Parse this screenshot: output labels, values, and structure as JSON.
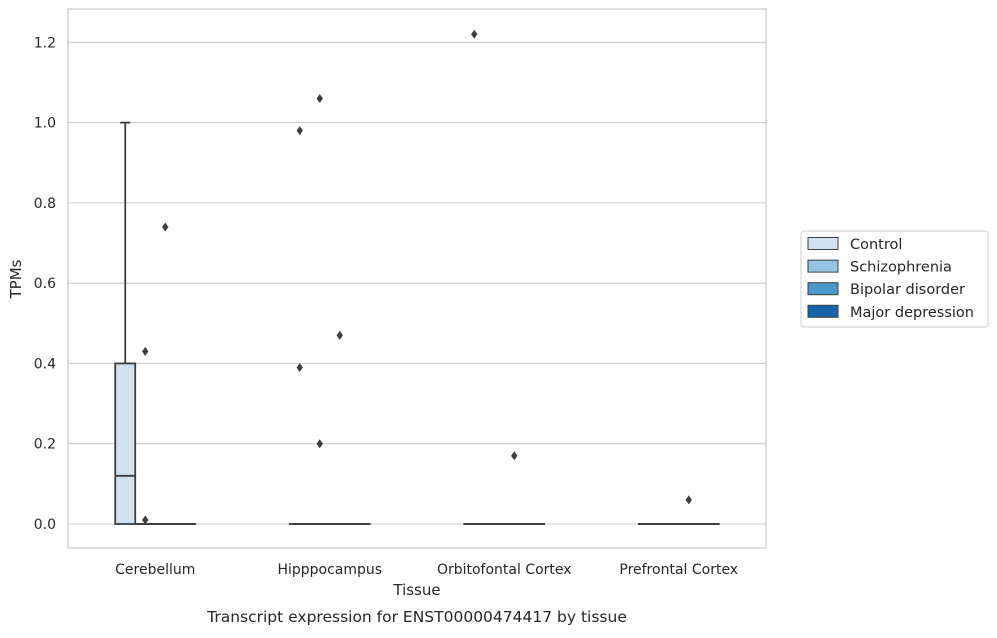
{
  "caption": "Transcript expression for ENST00000474417 by tissue",
  "chart_data": {
    "type": "box",
    "title": "",
    "xlabel": "Tissue",
    "ylabel": "TPMs",
    "ylim": [
      -0.06,
      1.28
    ],
    "yticks": [
      0.0,
      0.2,
      0.4,
      0.6,
      0.8,
      1.0,
      1.2
    ],
    "ytick_labels": [
      "0.0",
      "0.2",
      "0.4",
      "0.6",
      "0.8",
      "1.0",
      "1.2"
    ],
    "grid": true,
    "legend_position": "right",
    "categories": [
      "Cerebellum",
      "Hipppocampus",
      "Orbitofontal Cortex",
      "Prefrontal Cortex"
    ],
    "series": [
      {
        "name": "Control",
        "color": "#d0e1f2",
        "boxes": [
          {
            "q1": 0.0,
            "median": 0.12,
            "q3": 0.4,
            "whislo": 0.0,
            "whishi": 1.0,
            "fliers": []
          },
          {
            "q1": 0.0,
            "median": 0.0,
            "q3": 0.0,
            "whislo": 0.0,
            "whishi": 0.0,
            "fliers": [
              0.98,
              0.39
            ]
          },
          {
            "q1": 0.0,
            "median": 0.0,
            "q3": 0.0,
            "whislo": 0.0,
            "whishi": 0.0,
            "fliers": [
              1.22
            ]
          },
          {
            "q1": 0.0,
            "median": 0.0,
            "q3": 0.0,
            "whislo": 0.0,
            "whishi": 0.0,
            "fliers": []
          }
        ]
      },
      {
        "name": "Schizophrenia",
        "color": "#94c4df",
        "boxes": [
          {
            "q1": 0.0,
            "median": 0.0,
            "q3": 0.0,
            "whislo": 0.0,
            "whishi": 0.0,
            "fliers": [
              0.43,
              0.01
            ]
          },
          {
            "q1": 0.0,
            "median": 0.0,
            "q3": 0.0,
            "whislo": 0.0,
            "whishi": 0.0,
            "fliers": [
              1.06,
              0.2
            ]
          },
          {
            "q1": 0.0,
            "median": 0.0,
            "q3": 0.0,
            "whislo": 0.0,
            "whishi": 0.0,
            "fliers": []
          },
          {
            "q1": 0.0,
            "median": 0.0,
            "q3": 0.0,
            "whislo": 0.0,
            "whishi": 0.0,
            "fliers": []
          }
        ]
      },
      {
        "name": "Bipolar disorder",
        "color": "#4a98c9",
        "boxes": [
          {
            "q1": 0.0,
            "median": 0.0,
            "q3": 0.0,
            "whislo": 0.0,
            "whishi": 0.0,
            "fliers": [
              0.74
            ]
          },
          {
            "q1": 0.0,
            "median": 0.0,
            "q3": 0.0,
            "whislo": 0.0,
            "whishi": 0.0,
            "fliers": [
              0.47
            ]
          },
          {
            "q1": 0.0,
            "median": 0.0,
            "q3": 0.0,
            "whislo": 0.0,
            "whishi": 0.0,
            "fliers": [
              0.17
            ]
          },
          {
            "q1": 0.0,
            "median": 0.0,
            "q3": 0.0,
            "whislo": 0.0,
            "whishi": 0.0,
            "fliers": [
              0.06
            ]
          }
        ]
      },
      {
        "name": "Major depression",
        "color": "#1764ab",
        "boxes": [
          {
            "q1": 0.0,
            "median": 0.0,
            "q3": 0.0,
            "whislo": 0.0,
            "whishi": 0.0,
            "fliers": []
          },
          {
            "q1": 0.0,
            "median": 0.0,
            "q3": 0.0,
            "whislo": 0.0,
            "whishi": 0.0,
            "fliers": []
          },
          {
            "q1": 0.0,
            "median": 0.0,
            "q3": 0.0,
            "whislo": 0.0,
            "whishi": 0.0,
            "fliers": []
          },
          {
            "q1": 0.0,
            "median": 0.0,
            "q3": 0.0,
            "whislo": 0.0,
            "whishi": 0.0,
            "fliers": []
          }
        ]
      }
    ],
    "colors": {
      "axes_edge": "#cccccc",
      "grid": "#cccccc",
      "box_line": "#3d3d3d",
      "flier": "#3d3d3d"
    }
  }
}
